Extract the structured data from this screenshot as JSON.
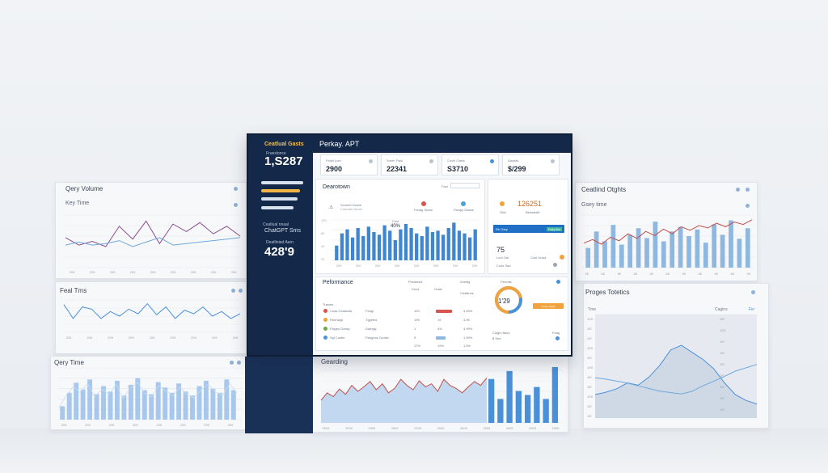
{
  "monitor": {
    "sidebar": {
      "brand": "Ceatlual Gasts",
      "kpi_label": "Frueslonce",
      "kpi_value": "1,S287",
      "menu": [
        {
          "label": "",
          "active": false
        },
        {
          "label": "",
          "active": true
        },
        {
          "label": "",
          "active": false
        },
        {
          "label": "",
          "active": false
        }
      ],
      "section_label": "Ceatlual nnaal",
      "section_title": "ChatGPT Sms",
      "metric_label": "Deatlloiad Aarn",
      "metric_value": "428'9"
    },
    "header": {
      "title": "Perkay. APT"
    },
    "kpis": [
      {
        "label": "Feabl Ipxe",
        "value": "2900"
      },
      {
        "label": "Sneth Fiasl",
        "value": "22341"
      },
      {
        "label": "Cosel Oasts",
        "value": "S3710"
      },
      {
        "label": "Daaalis",
        "value": "$/299"
      }
    ],
    "overview": {
      "title": "Dearotown",
      "toolbar_select": "Fact",
      "item1_label": "Sconmt Voaue",
      "item1_sub": "Cauusto Gunel",
      "item2_label": "Fenag Sicnis",
      "item3_label": "Fleapy Gaseb",
      "tooltip": "40%",
      "tooltip_label": "Coxt",
      "bars": [
        22,
        40,
        46,
        34,
        48,
        36,
        50,
        42,
        38,
        52,
        44,
        30,
        46,
        54,
        48,
        40,
        36,
        50,
        42,
        44,
        38,
        48,
        56,
        44,
        40,
        34,
        46
      ],
      "x_labels": [
        "209",
        "209",
        "209",
        "209",
        "209",
        "209",
        "209",
        "209"
      ],
      "y_labels": [
        "120",
        "80",
        "40",
        "20"
      ]
    },
    "side_card": {
      "value": "126251",
      "value_label": "Gfat",
      "value_sub": "Beeaslaitl",
      "button": "Rb Gary",
      "button2": "Roty Bvl",
      "score": "75",
      "score_sub": "Lcnt Oal",
      "score_sub2": "Cosl Onalz",
      "footer": "Ccnd Sarl"
    },
    "performance": {
      "title": "Peformance",
      "legend": "Trasnts",
      "col_headers": [
        "Preabeed",
        "Grats",
        "Sneiltg"
      ],
      "col_sub": [
        "Cexd",
        "",
        "Ceatliuns"
      ],
      "rows": [
        {
          "name": "Coas Ceaanais",
          "type": "Feagi",
          "v1": "129",
          "v2": "",
          "v3": "3.59%",
          "color": "#d9534f"
        },
        {
          "name": "Reenlagi",
          "type": "Tgpeles",
          "v1": "199",
          "v2": "19",
          "v3": "3.95",
          "color": "#e8a33c"
        },
        {
          "name": "Fiagey Oansy",
          "type": "Damgly",
          "v1": "1",
          "v2": "4%",
          "v3": "3.99%",
          "color": "#6aa84f"
        },
        {
          "name": "Sgl Cosbe",
          "type": "Paoghos Grolsb",
          "v1": "9",
          "v2": "89",
          "v3": "1.59%",
          "color": "#4a90d9"
        },
        {
          "name": "",
          "type": "",
          "v1": "17%",
          "v2": "19%",
          "v3": "1.5%",
          "color": "#4a90d9"
        }
      ],
      "donut_label": "Peerats",
      "donut_value": "1'29",
      "donut_pct": 0.72,
      "donut_button": "Fraop Sagslt",
      "donut_footer": "Cioglo Baso",
      "donut_footer2": "$ Sed",
      "donut_footer3": "Fnag"
    }
  },
  "cards": {
    "query_volume": {
      "title": "Qery Volume",
      "subtitle": "Key Time",
      "x_labels": [
        "209",
        "209",
        "209",
        "209",
        "209",
        "209",
        "209",
        "209",
        "209"
      ],
      "series_a": [
        40,
        30,
        35,
        28,
        55,
        38,
        62,
        32,
        58,
        48,
        60,
        45,
        55,
        42
      ],
      "series_b": [
        30,
        34,
        30,
        32,
        36,
        28,
        34,
        40,
        30,
        32,
        34,
        36,
        38,
        40
      ]
    },
    "feal_tims": {
      "title": "Feal Tms",
      "x_labels": [
        "209",
        "209",
        "209",
        "209",
        "209",
        "209",
        "209",
        "209",
        "209"
      ],
      "series": [
        60,
        30,
        55,
        50,
        30,
        45,
        35,
        50,
        40,
        62,
        38,
        55,
        30,
        48,
        40,
        55,
        35,
        45,
        30,
        40
      ]
    },
    "query_time": {
      "title": "Qery Time",
      "bars": [
        20,
        40,
        55,
        45,
        60,
        38,
        50,
        42,
        58,
        36,
        52,
        62,
        44,
        38,
        56,
        48,
        40,
        54,
        42,
        36,
        50,
        58,
        46,
        40,
        60,
        44
      ],
      "x_labels": [
        "209",
        "209",
        "209",
        "209",
        "209",
        "209",
        "209",
        "209"
      ]
    },
    "gearding": {
      "title": "Gearding",
      "area": [
        30,
        40,
        35,
        45,
        38,
        50,
        42,
        48,
        55,
        44,
        52,
        40,
        46,
        58,
        50,
        44,
        56,
        48,
        52,
        42,
        58,
        50,
        46,
        40,
        48,
        55,
        50,
        60
      ],
      "bars": [
        55,
        30,
        65,
        40,
        35,
        45,
        30,
        70
      ],
      "x_labels": [
        "2505",
        "2505",
        "2505",
        "2505",
        "2505",
        "2605",
        "2605",
        "2605",
        "2605",
        "2605",
        "2605"
      ]
    },
    "central_charts": {
      "title": "Ceatlind Otghts",
      "subtitle": "Gsey time",
      "bars": [
        30,
        55,
        40,
        65,
        35,
        50,
        60,
        45,
        70,
        40,
        55,
        62,
        48,
        58,
        38,
        66,
        50,
        72,
        44,
        60
      ],
      "line": [
        42,
        48,
        40,
        52,
        46,
        58,
        50,
        62,
        55,
        66,
        58,
        70,
        64,
        72,
        68,
        76,
        70,
        78,
        74,
        82
      ],
      "x_labels": [
        "2E",
        "6E",
        "5E",
        "5E",
        "6E",
        "6E",
        "5E",
        "5E",
        "5E",
        "5E",
        "9E"
      ]
    },
    "project_totals": {
      "title": "Proges Totetics",
      "col_left": "Tme",
      "col_right": "Cagins",
      "col_right2": "Fie",
      "y_left": [
        "1EE",
        "1IE",
        "1IE",
        "1EE",
        "1IE",
        "1EE",
        "1IE",
        "1IE",
        "1EE",
        "1IE",
        "1IE"
      ],
      "y_right": [
        "1IE",
        "1EE",
        "1IE",
        "1IE",
        "1IE",
        "1IE",
        "1IE",
        "1IE",
        "1IE"
      ],
      "area": [
        20,
        22,
        25,
        30,
        28,
        35,
        45,
        58,
        62,
        56,
        50,
        42,
        30,
        20,
        15,
        12
      ],
      "line": [
        60,
        58,
        55,
        52,
        48,
        44,
        40,
        38,
        36,
        40,
        48,
        55,
        62,
        70,
        75,
        80
      ]
    }
  },
  "colors": {
    "navy": "#14294a",
    "accent_blue": "#4a90d9",
    "accent_orange": "#f0a33c",
    "accent_red": "#c0504d",
    "accent_purple": "#8a4f8c"
  }
}
